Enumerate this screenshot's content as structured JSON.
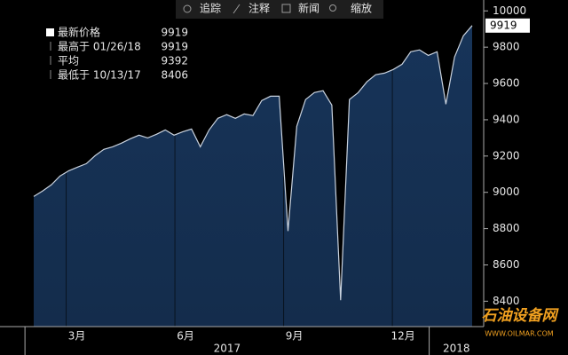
{
  "chart_data": {
    "type": "area",
    "toolbar": [
      "追踪",
      "注释",
      "新闻",
      "缩放"
    ],
    "legend": [
      {
        "name": "最新价格",
        "value": 9919
      },
      {
        "name": "最高于 01/26/18",
        "value": 9919
      },
      {
        "name": "平均",
        "value": 9392
      },
      {
        "name": "最低于 10/13/17",
        "value": 8406
      }
    ],
    "last_value": 9919,
    "values": [
      8977,
      9007,
      9041,
      9090,
      9119,
      9139,
      9158,
      9202,
      9237,
      9251,
      9271,
      9295,
      9315,
      9300,
      9320,
      9344,
      9315,
      9334,
      9349,
      9251,
      9344,
      9408,
      9428,
      9408,
      9432,
      9423,
      9506,
      9530,
      9530,
      8787,
      9364,
      9511,
      9550,
      9560,
      9481,
      8406,
      9511,
      9550,
      9609,
      9648,
      9657,
      9677,
      9706,
      9775,
      9785,
      9755,
      9775,
      9486,
      9746,
      9863,
      9919
    ],
    "color": "#173459",
    "line_color": "#c9d2de",
    "ylim": [
      8260,
      10060
    ],
    "yticks": [
      8400,
      8600,
      8800,
      9000,
      9200,
      9400,
      9600,
      9800,
      10000
    ],
    "xlim": [
      0,
      50
    ],
    "xticks": [
      {
        "value": 3.7,
        "label": "3月"
      },
      {
        "value": 16.1,
        "label": "6月"
      },
      {
        "value": 28.5,
        "label": "9月"
      },
      {
        "value": 40.9,
        "label": "12月"
      }
    ],
    "year_ticks": [
      {
        "value": -1,
        "label": "2017"
      },
      {
        "value": 45.1,
        "label": "2018"
      }
    ],
    "watermark": [
      "石油设备网",
      "WWW.OILMAR.COM"
    ]
  }
}
